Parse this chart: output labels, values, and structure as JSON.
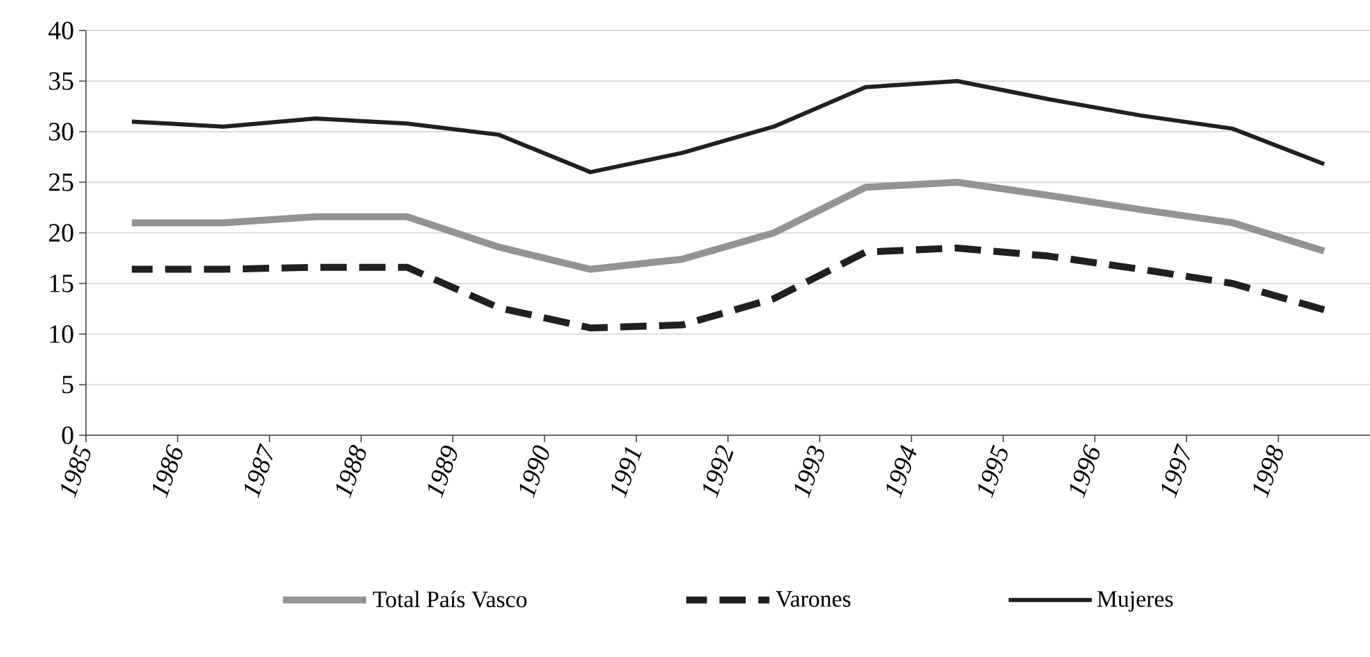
{
  "chart_data": {
    "type": "line",
    "x": [
      1985.5,
      1986.5,
      1987.5,
      1988.5,
      1989.5,
      1990.5,
      1991.5,
      1992.5,
      1993.5,
      1994.5,
      1995.5,
      1996.5,
      1997.5,
      1998.5
    ],
    "series": [
      {
        "name": "Total País Vasco",
        "color": "#939393",
        "line_style": "solid",
        "values": [
          21.0,
          21.0,
          21.6,
          21.6,
          18.6,
          16.4,
          17.4,
          20.0,
          24.5,
          25.0,
          23.7,
          22.3,
          21.0,
          18.2
        ]
      },
      {
        "name": "Varones",
        "color": "#231f20",
        "line_style": "dashed",
        "values": [
          16.4,
          16.4,
          16.6,
          16.6,
          12.6,
          10.6,
          10.9,
          13.5,
          18.1,
          18.5,
          17.7,
          16.4,
          15.0,
          12.4
        ]
      },
      {
        "name": "Mujeres",
        "color": "#231f20",
        "line_style": "solid",
        "values": [
          31.0,
          30.5,
          31.3,
          30.8,
          29.7,
          26.0,
          27.9,
          30.5,
          34.4,
          35.0,
          33.2,
          31.6,
          30.3,
          26.8
        ]
      }
    ],
    "xlim": [
      1985,
      1999
    ],
    "xticks": [
      1985,
      1986,
      1987,
      1988,
      1989,
      1990,
      1991,
      1992,
      1993,
      1994,
      1995,
      1996,
      1997,
      1998
    ],
    "ylim": [
      0,
      40
    ],
    "yticks": [
      0,
      5,
      10,
      15,
      20,
      25,
      30,
      35,
      40
    ],
    "grid": "y",
    "legend": "bottom"
  }
}
